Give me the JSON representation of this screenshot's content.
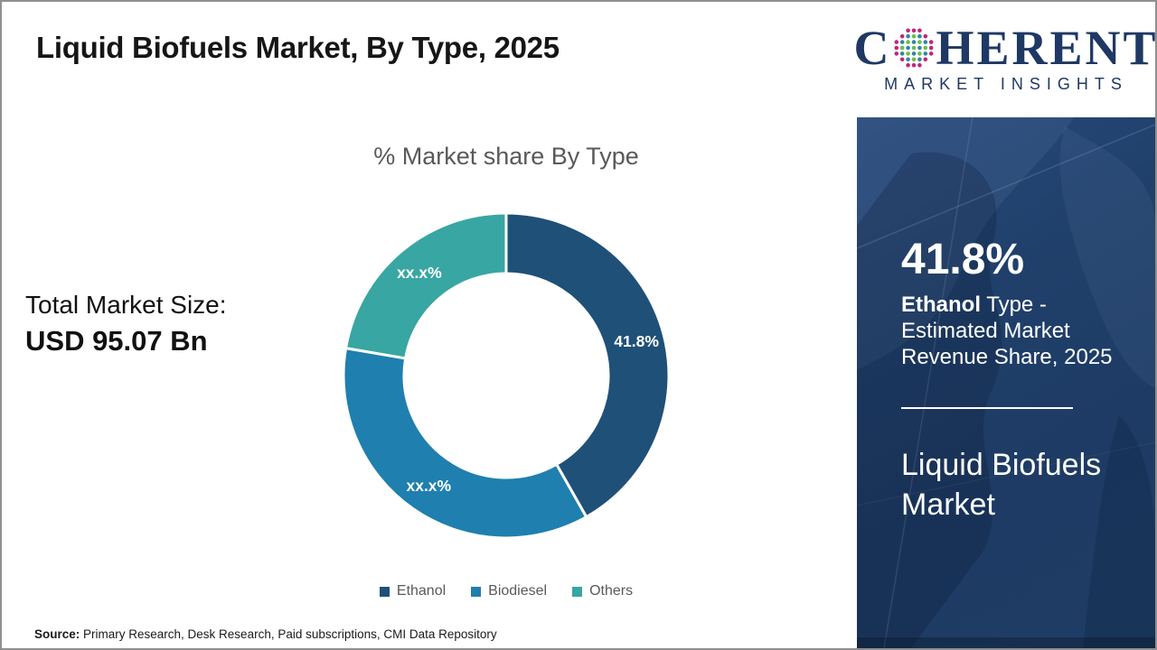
{
  "header": {
    "title": "Liquid Biofuels Market, By Type, 2025"
  },
  "logo": {
    "word_start": "C",
    "word_end": "HERENT",
    "subtitle": "MARKET INSIGHTS",
    "text_color": "#1F3864",
    "globe_colors": {
      "outer": "#C0267E",
      "green": "#6CBE45",
      "blue": "#2F86A8"
    }
  },
  "total_market": {
    "label": "Total Market Size:",
    "value": "USD 95.07 Bn"
  },
  "chart_data": {
    "type": "pie",
    "donut": true,
    "title": "% Market share By Type",
    "categories": [
      "Ethanol",
      "Biodiesel",
      "Others"
    ],
    "values": [
      41.8,
      35.9,
      22.3
    ],
    "display_labels": [
      "41.8%",
      "xx.x%",
      "xx.x%"
    ],
    "colors": [
      "#1F5078",
      "#1F7FAE",
      "#38A6A2"
    ],
    "start_angle_deg": 0,
    "clockwise": true,
    "legend_position": "bottom",
    "label_text_color": "#ffffff"
  },
  "sidebar": {
    "stat_value": "41.8%",
    "desc_bold": "Ethanol",
    "desc_rest": " Type - Estimated Market Revenue Share, 2025",
    "market_name": "Liquid Biofuels Market",
    "bg_color": "#1E3C64"
  },
  "source": {
    "label": "Source:",
    "text": " Primary Research, Desk Research, Paid subscriptions, CMI Data Repository"
  }
}
